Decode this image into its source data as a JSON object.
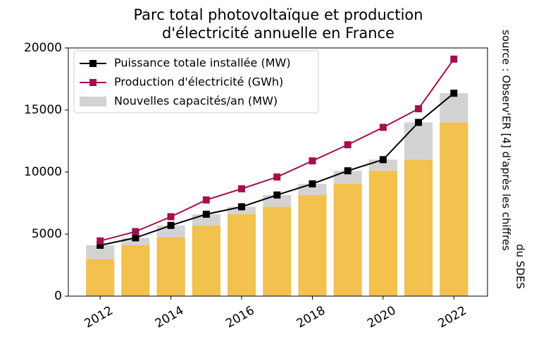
{
  "chart_data": {
    "type": "combo",
    "title": [
      "Parc total photovoltaïque et production",
      "d'électricité annuelle en France"
    ],
    "annotation": [
      "source : Observ'ER [4] d'après les chiffres",
      "du SDES"
    ],
    "x": [
      2012,
      2013,
      2014,
      2015,
      2016,
      2017,
      2018,
      2019,
      2020,
      2021,
      2022
    ],
    "series": [
      {
        "kind": "bar",
        "color": "#f2c14e",
        "values": [
          3000,
          4100,
          4750,
          5700,
          6600,
          7200,
          8150,
          9050,
          10100,
          11000,
          14000
        ]
      },
      {
        "kind": "bar",
        "name": "Nouvelles capacités/an (MW)",
        "color": "#d3d3d3",
        "values": [
          1100,
          600,
          950,
          900,
          600,
          950,
          900,
          1050,
          900,
          3000,
          2350
        ]
      },
      {
        "kind": "line",
        "name": "Puissance totale installée (MW)",
        "color": "#000000",
        "values": [
          4100,
          4700,
          5700,
          6600,
          7200,
          8150,
          9050,
          10100,
          11000,
          14000,
          16350
        ]
      },
      {
        "kind": "line",
        "name": "Production d'électricité (GWh)",
        "color": "#a50f4f",
        "values": [
          4450,
          5200,
          6400,
          7750,
          8650,
          9600,
          10900,
          12200,
          13600,
          15100,
          19100
        ]
      }
    ],
    "legend_order": [
      2,
      3,
      1
    ],
    "legend": "upper left",
    "xlim": [
      2011.1,
      2022.95
    ],
    "xticks": [
      2012,
      2014,
      2016,
      2018,
      2020,
      2022
    ],
    "ylim": [
      0,
      20000
    ],
    "yticks": [
      0,
      5000,
      10000,
      15000,
      20000
    ]
  }
}
